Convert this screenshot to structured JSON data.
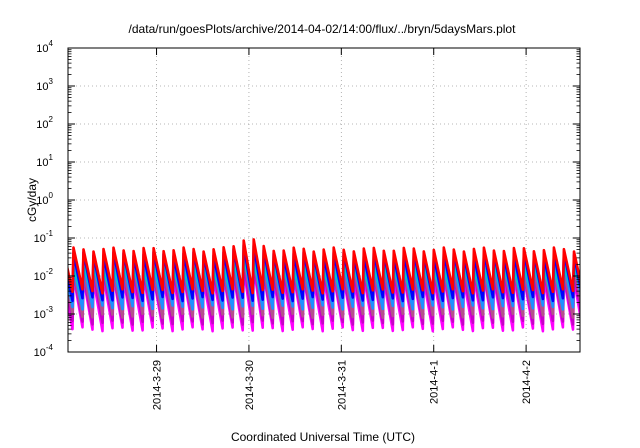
{
  "chart_data": {
    "type": "line",
    "title": "/data/run/goesPlots/archive/2014-04-02/14:00/flux/../bryn/5daysMars.plot",
    "xlabel": "Coordinated Universal Time (UTC)",
    "ylabel": "cGy/day",
    "y_scale": "log",
    "ylim": [
      0.0001,
      10000
    ],
    "y_ticks": [
      {
        "base": "10",
        "exp": "-4",
        "value": 0.0001
      },
      {
        "base": "10",
        "exp": "-3",
        "value": 0.001
      },
      {
        "base": "10",
        "exp": "-2",
        "value": 0.01
      },
      {
        "base": "10",
        "exp": "-1",
        "value": 0.1
      },
      {
        "base": "10",
        "exp": "0",
        "value": 1
      },
      {
        "base": "10",
        "exp": "1",
        "value": 10
      },
      {
        "base": "10",
        "exp": "2",
        "value": 100
      },
      {
        "base": "10",
        "exp": "3",
        "value": 1000
      },
      {
        "base": "10",
        "exp": "4",
        "value": 10000
      }
    ],
    "xlim": [
      "2014-03-28T01:00",
      "2014-04-02T14:00"
    ],
    "x_ticks": [
      "2014-3-29",
      "2014-3-30",
      "2014-3-31",
      "2014-4-1",
      "2014-4-2"
    ],
    "x_tick_dates": [
      "2014-03-29",
      "2014-03-30",
      "2014-03-31",
      "2014-04-01",
      "2014-04-02"
    ],
    "grid": true,
    "sawtooth_cycle_hours": 2.6,
    "series": [
      {
        "color": "#ff00ff",
        "peak_cGy_per_day": 0.009,
        "trough_cGy_per_day": 0.0004
      },
      {
        "color": "#c800c8",
        "peak_cGy_per_day": 0.012,
        "trough_cGy_per_day": 0.0006
      },
      {
        "color": "#b4508c",
        "peak_cGy_per_day": 0.016,
        "trough_cGy_per_day": 0.0009
      },
      {
        "color": "#1e90ff",
        "peak_cGy_per_day": 0.022,
        "trough_cGy_per_day": 0.0015
      },
      {
        "color": "#00c8c8",
        "peak_cGy_per_day": 0.016,
        "trough_cGy_per_day": 0.003
      },
      {
        "color": "#0000ff",
        "peak_cGy_per_day": 0.038,
        "trough_cGy_per_day": 0.0025
      },
      {
        "color": "#ff0000",
        "peak_cGy_per_day": 0.05,
        "trough_cGy_per_day": 0.004
      }
    ],
    "event": {
      "peak_time": "2014-03-29T23:30",
      "scale": 2.0,
      "peak_cGy_per_day": 0.1
    }
  }
}
